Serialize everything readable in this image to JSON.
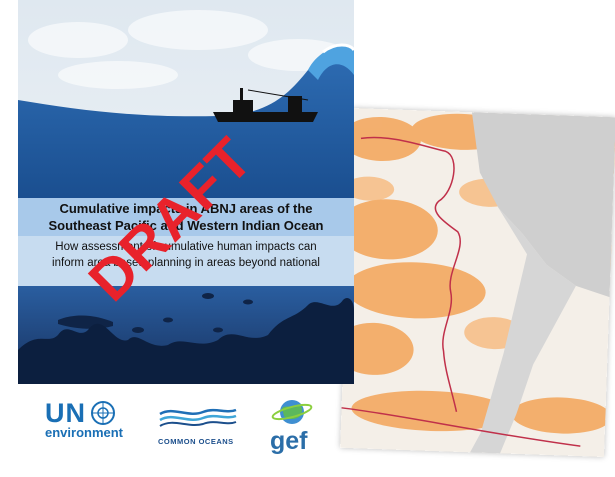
{
  "cover": {
    "title_line1": "Cumulative impacts in ABNJ areas of the",
    "title_line2": "Southeast Pacific and Western Indian Ocean",
    "subtitle_line1": "How assessment of cumulative human impacts can",
    "subtitle_line2": "inform area based planning in areas beyond national",
    "watermark": "DRAFT"
  },
  "logos": {
    "un_line1": "UN",
    "un_line2": "environment",
    "common_oceans": "COMMON OCEANS",
    "gef": "gef"
  },
  "colors": {
    "sky": "#e6edf3",
    "deep_blue": "#1a4e8f",
    "mid_blue": "#2e6db4",
    "band_blue": "#a8c9ea",
    "dark_navy": "#17315e",
    "watermark_red": "#e8222b",
    "impact_orange": "#f39a45"
  }
}
